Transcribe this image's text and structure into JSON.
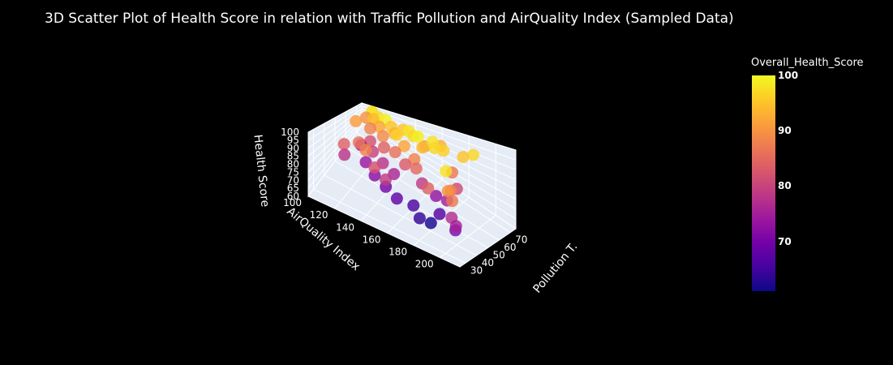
{
  "chart_data": {
    "type": "scatter3d",
    "title": "3D Scatter Plot of Health Score in relation with Traffic Pollution and AirQuality Index (Sampled Data)",
    "axes": {
      "x": {
        "label": "AirQuality Index",
        "ticks": [
          100,
          120,
          140,
          160,
          180,
          200
        ],
        "range": [
          100,
          215
        ]
      },
      "y": {
        "label": "Pollution T.",
        "ticks": [
          30,
          40,
          50,
          60,
          70
        ],
        "range": [
          25,
          75
        ]
      },
      "z": {
        "label": "Health Score",
        "ticks": [
          60,
          65,
          70,
          75,
          80,
          85,
          90,
          95,
          100
        ],
        "range": [
          60,
          100
        ]
      }
    },
    "colorbar": {
      "title": "Overall_Health_Score",
      "ticks": [
        70,
        80,
        90,
        100
      ],
      "range": [
        61,
        100
      ],
      "colorscale": [
        "#0d0887",
        "#46039f",
        "#7201a8",
        "#9c179e",
        "#bd3786",
        "#d8576b",
        "#ed7953",
        "#fb9f3a",
        "#fdca26",
        "#f0f921"
      ]
    },
    "points": [
      [
        112,
        70,
        98
      ],
      [
        118,
        68,
        97
      ],
      [
        125,
        66,
        99
      ],
      [
        110,
        72,
        96
      ],
      [
        130,
        65,
        95
      ],
      [
        115,
        67,
        94
      ],
      [
        122,
        64,
        92
      ],
      [
        108,
        69,
        90
      ],
      [
        135,
        62,
        93
      ],
      [
        128,
        60,
        89
      ],
      [
        140,
        58,
        96
      ],
      [
        145,
        63,
        98
      ],
      [
        150,
        61,
        97
      ],
      [
        138,
        66,
        95
      ],
      [
        155,
        59,
        99
      ],
      [
        160,
        57,
        94
      ],
      [
        148,
        55,
        92
      ],
      [
        170,
        56,
        97
      ],
      [
        165,
        60,
        98
      ],
      [
        175,
        58,
        96
      ],
      [
        158,
        52,
        88
      ],
      [
        142,
        54,
        86
      ],
      [
        132,
        56,
        84
      ],
      [
        120,
        58,
        82
      ],
      [
        126,
        53,
        80
      ],
      [
        136,
        50,
        78
      ],
      [
        146,
        48,
        76
      ],
      [
        152,
        51,
        83
      ],
      [
        162,
        49,
        85
      ],
      [
        168,
        47,
        79
      ],
      [
        114,
        57,
        76
      ],
      [
        124,
        49,
        74
      ],
      [
        134,
        45,
        72
      ],
      [
        144,
        43,
        70
      ],
      [
        154,
        41,
        68
      ],
      [
        164,
        44,
        66
      ],
      [
        172,
        40,
        64
      ],
      [
        178,
        43,
        62
      ],
      [
        182,
        46,
        67
      ],
      [
        176,
        50,
        73
      ],
      [
        186,
        48,
        75
      ],
      [
        190,
        52,
        81
      ],
      [
        184,
        55,
        87
      ],
      [
        196,
        35,
        98
      ],
      [
        200,
        32,
        90
      ],
      [
        205,
        30,
        87
      ],
      [
        198,
        37,
        88
      ],
      [
        202,
        33,
        77
      ],
      [
        207,
        31,
        75
      ],
      [
        204,
        34,
        71
      ],
      [
        118,
        50,
        86
      ],
      [
        128,
        44,
        88
      ],
      [
        110,
        46,
        84
      ],
      [
        138,
        40,
        82
      ],
      [
        148,
        38,
        79
      ],
      [
        106,
        62,
        91
      ],
      [
        116,
        63,
        88
      ],
      [
        156,
        64,
        90
      ],
      [
        166,
        66,
        93
      ],
      [
        112,
        44,
        78
      ],
      [
        188,
        60,
        95
      ],
      [
        194,
        62,
        97
      ],
      [
        180,
        38,
        84
      ]
    ]
  }
}
